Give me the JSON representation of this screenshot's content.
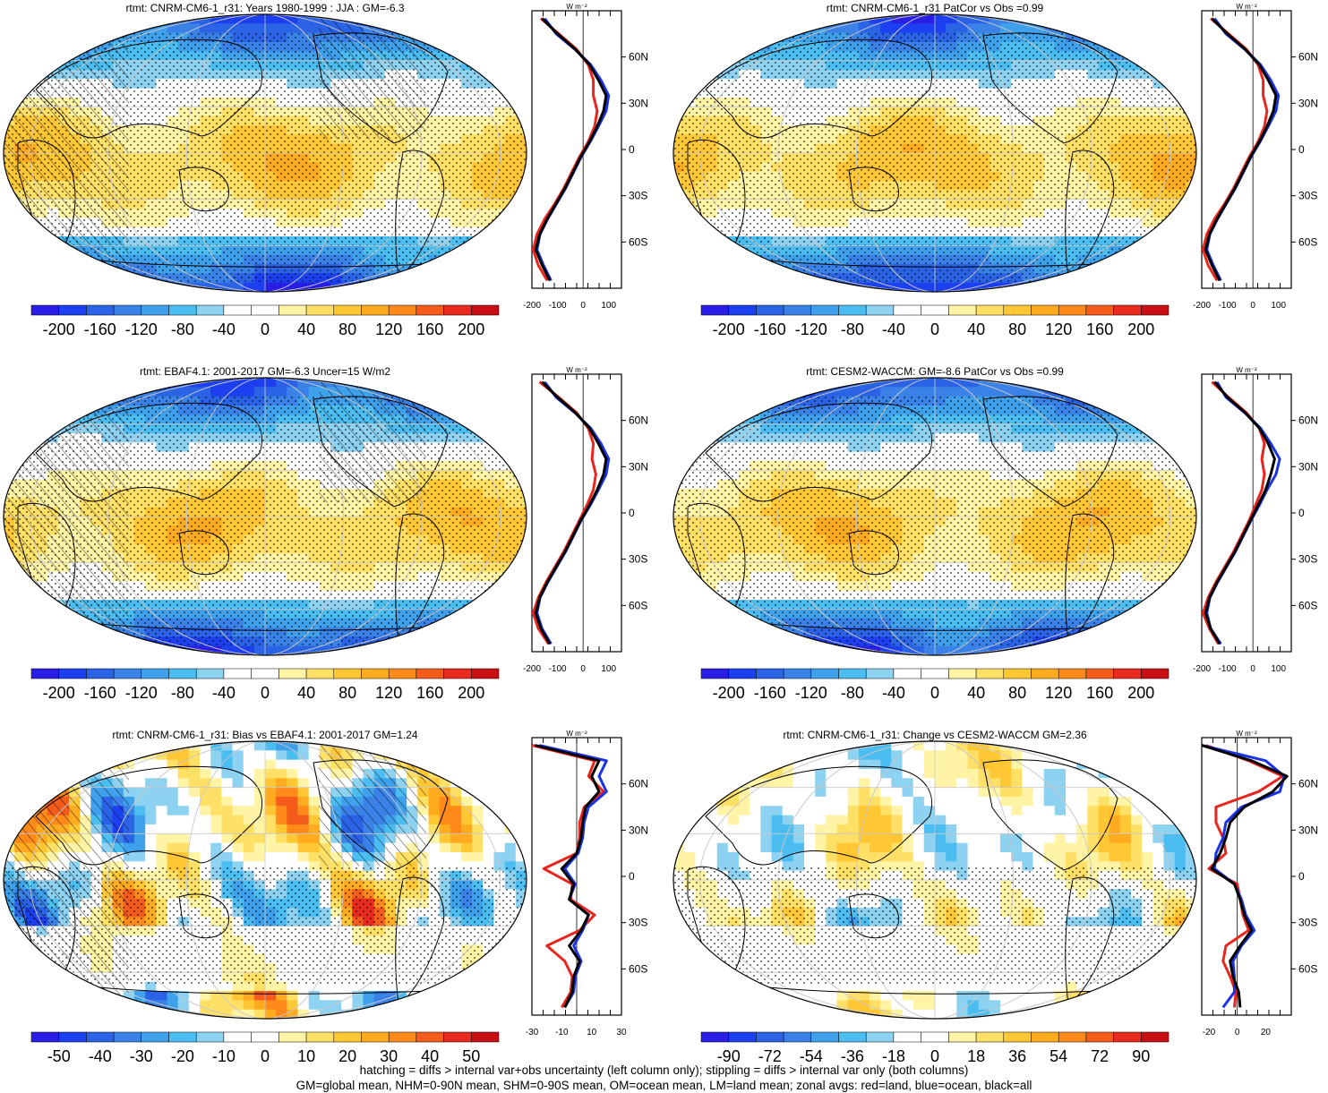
{
  "panels": [
    {
      "title": "rtmt: CNRM-CM6-1_r31: Years 1980-1999 : JJA : GM=-6.3",
      "kind": "clim",
      "hatch": true,
      "pattern": 0,
      "colorbar_labels": [
        "-200",
        "-160",
        "-120",
        "-80",
        "-40",
        "0",
        "40",
        "80",
        "120",
        "160",
        "200"
      ]
    },
    {
      "title": "rtmt: CNRM-CM6-1_r31 PatCor vs Obs =0.99",
      "kind": "clim",
      "hatch": false,
      "pattern": 1,
      "colorbar_labels": [
        "-200",
        "-160",
        "-120",
        "-80",
        "-40",
        "0",
        "40",
        "80",
        "120",
        "160",
        "200"
      ]
    },
    {
      "title": "rtmt: EBAF4.1: 2001-2017 GM=-6.3 Uncer=15 W/m2",
      "kind": "clim",
      "hatch": true,
      "pattern": 2,
      "colorbar_labels": [
        "-200",
        "-160",
        "-120",
        "-80",
        "-40",
        "0",
        "40",
        "80",
        "120",
        "160",
        "200"
      ]
    },
    {
      "title": "rtmt: CESM2-WACCM: GM=-8.6 PatCor vs Obs =0.99",
      "kind": "clim",
      "hatch": false,
      "pattern": 3,
      "colorbar_labels": [
        "-200",
        "-160",
        "-120",
        "-80",
        "-40",
        "0",
        "40",
        "80",
        "120",
        "160",
        "200"
      ]
    },
    {
      "title": "rtmt: CNRM-CM6-1_r31: Bias vs EBAF4.1: 2001-2017 GM=1.24",
      "kind": "diff",
      "hatch": true,
      "pattern": 4,
      "colorbar_labels": [
        "-50",
        "-40",
        "-30",
        "-20",
        "-10",
        "0",
        "10",
        "20",
        "30",
        "40",
        "50"
      ]
    },
    {
      "title": "rtmt: CNRM-CM6-1_r31: Change vs CESM2-WACCM GM=2.36",
      "kind": "diff",
      "hatch": false,
      "pattern": 5,
      "colorbar_labels": [
        "-90",
        "-72",
        "-54",
        "-36",
        "-18",
        "0",
        "18",
        "36",
        "54",
        "72",
        "90"
      ]
    }
  ],
  "zonal_unit": "W m⁻²",
  "lat_labels": [
    "60N",
    "30N",
    "0",
    "30S",
    "60S"
  ],
  "colors": {
    "cmap": [
      "#2a1ee6",
      "#1c3ff0",
      "#2b63e6",
      "#3a82e8",
      "#3fa0ec",
      "#4cbdf0",
      "#8ed2f2",
      "#ffffff",
      "#ffffff",
      "#fff3a6",
      "#ffe066",
      "#ffc733",
      "#ffab1f",
      "#ff8a1a",
      "#f55b1a",
      "#e82a1f",
      "#c80f14"
    ],
    "land": "#e8251f",
    "ocean": "#1a33e6",
    "all": "#000000",
    "grid": "#c8c8c8"
  },
  "chart_data": [
    {
      "type": "line",
      "panel": "rtmt: CNRM-CM6-1_r31: Years 1980-1999 : JJA : GM=-6.3",
      "xlabel": "W m⁻²",
      "xlim": [
        -200,
        150
      ],
      "ylim": [
        -90,
        90
      ],
      "xticks": [
        "-200",
        "-100",
        "0",
        "100"
      ],
      "yticks": [
        "60N",
        "30N",
        "0",
        "30S",
        "60S"
      ],
      "y": [
        -85,
        -75,
        -65,
        -55,
        -45,
        -35,
        -25,
        -15,
        -5,
        5,
        15,
        25,
        35,
        45,
        55,
        65,
        75,
        85
      ],
      "series": [
        {
          "name": "all",
          "values": [
            -130,
            -160,
            -185,
            -170,
            -140,
            -105,
            -70,
            -40,
            -10,
            25,
            55,
            80,
            90,
            60,
            25,
            -30,
            -100,
            -160
          ]
        },
        {
          "name": "land",
          "values": [
            -140,
            -175,
            -195,
            -180,
            -150,
            -110,
            -75,
            -45,
            -15,
            20,
            45,
            55,
            40,
            40,
            20,
            -25,
            -95,
            -165
          ]
        },
        {
          "name": "ocean",
          "values": [
            -125,
            -155,
            -180,
            -168,
            -138,
            -103,
            -68,
            -38,
            -8,
            28,
            60,
            90,
            100,
            70,
            30,
            -32,
            -105,
            -150
          ]
        }
      ]
    },
    {
      "type": "line",
      "panel": "rtmt: CNRM-CM6-1_r31 PatCor vs Obs =0.99",
      "xlabel": "W m⁻²",
      "xlim": [
        -200,
        150
      ],
      "ylim": [
        -90,
        90
      ],
      "xticks": [
        "-200",
        "-100",
        "0",
        "100"
      ],
      "yticks": [
        "60N",
        "30N",
        "0",
        "30S",
        "60S"
      ],
      "y": [
        -85,
        -75,
        -65,
        -55,
        -45,
        -35,
        -25,
        -15,
        -5,
        5,
        15,
        25,
        35,
        45,
        55,
        65,
        75,
        85
      ],
      "series": [
        {
          "name": "all",
          "values": [
            -130,
            -160,
            -185,
            -170,
            -140,
            -105,
            -70,
            -40,
            -10,
            25,
            55,
            80,
            90,
            60,
            25,
            -30,
            -100,
            -160
          ]
        },
        {
          "name": "land",
          "values": [
            -140,
            -175,
            -195,
            -180,
            -150,
            -110,
            -75,
            -45,
            -15,
            20,
            45,
            55,
            40,
            40,
            20,
            -25,
            -95,
            -165
          ]
        },
        {
          "name": "ocean",
          "values": [
            -125,
            -155,
            -180,
            -168,
            -138,
            -103,
            -68,
            -38,
            -8,
            28,
            60,
            90,
            100,
            70,
            30,
            -32,
            -105,
            -150
          ]
        }
      ]
    },
    {
      "type": "line",
      "panel": "rtmt: EBAF4.1: 2001-2017 GM=-6.3 Uncer=15 W/m2",
      "xlabel": "W m⁻²",
      "xlim": [
        -200,
        150
      ],
      "ylim": [
        -90,
        90
      ],
      "xticks": [
        "-200",
        "-100",
        "0",
        "100"
      ],
      "yticks": [
        "60N",
        "30N",
        "0",
        "30S",
        "60S"
      ],
      "y": [
        -85,
        -75,
        -65,
        -55,
        -45,
        -35,
        -25,
        -15,
        -5,
        5,
        15,
        25,
        35,
        45,
        55,
        65,
        75,
        85
      ],
      "series": [
        {
          "name": "all",
          "values": [
            -130,
            -165,
            -185,
            -170,
            -140,
            -105,
            -70,
            -40,
            -10,
            25,
            55,
            80,
            90,
            60,
            25,
            -30,
            -100,
            -160
          ]
        },
        {
          "name": "land",
          "values": [
            -135,
            -175,
            -195,
            -175,
            -145,
            -110,
            -75,
            -45,
            -15,
            15,
            40,
            50,
            35,
            40,
            20,
            -25,
            -95,
            -170
          ]
        },
        {
          "name": "ocean",
          "values": [
            -125,
            -160,
            -180,
            -168,
            -138,
            -103,
            -68,
            -38,
            -8,
            28,
            60,
            90,
            100,
            70,
            30,
            -32,
            -105,
            -150
          ]
        }
      ]
    },
    {
      "type": "line",
      "panel": "rtmt: CESM2-WACCM: GM=-8.6 PatCor vs Obs =0.99",
      "xlabel": "W m⁻²",
      "xlim": [
        -200,
        150
      ],
      "ylim": [
        -90,
        90
      ],
      "xticks": [
        "-200",
        "-100",
        "0",
        "100"
      ],
      "yticks": [
        "60N",
        "30N",
        "0",
        "30S",
        "60S"
      ],
      "y": [
        -85,
        -75,
        -65,
        -55,
        -45,
        -35,
        -25,
        -15,
        -5,
        5,
        15,
        25,
        35,
        45,
        55,
        65,
        75,
        85
      ],
      "series": [
        {
          "name": "all",
          "values": [
            -130,
            -165,
            -185,
            -170,
            -140,
            -105,
            -70,
            -40,
            -10,
            20,
            50,
            70,
            85,
            60,
            25,
            -30,
            -100,
            -150
          ]
        },
        {
          "name": "land",
          "values": [
            -135,
            -170,
            -195,
            -175,
            -145,
            -110,
            -75,
            -45,
            -15,
            10,
            35,
            45,
            35,
            45,
            25,
            -25,
            -95,
            -160
          ]
        },
        {
          "name": "ocean",
          "values": [
            -125,
            -165,
            -180,
            -168,
            -138,
            -103,
            -68,
            -38,
            -8,
            25,
            55,
            90,
            105,
            70,
            30,
            -32,
            -105,
            -140
          ]
        }
      ]
    },
    {
      "type": "line",
      "panel": "rtmt: CNRM-CM6-1_r31: Bias vs EBAF4.1: 2001-2017 GM=1.24",
      "xlabel": "W m⁻²",
      "xlim": [
        -30,
        30
      ],
      "ylim": [
        -90,
        90
      ],
      "xticks": [
        "-30",
        "-10",
        "10",
        "30"
      ],
      "yticks": [
        "60N",
        "30N",
        "0",
        "30S",
        "60S"
      ],
      "y": [
        -85,
        -75,
        -65,
        -55,
        -45,
        -35,
        -25,
        -15,
        -5,
        5,
        15,
        25,
        35,
        45,
        55,
        65,
        75,
        85
      ],
      "series": [
        {
          "name": "all",
          "values": [
            -8,
            -3,
            -2,
            2,
            -5,
            3,
            8,
            -5,
            -2,
            -10,
            0,
            3,
            4,
            6,
            15,
            10,
            15,
            -28
          ]
        },
        {
          "name": "land",
          "values": [
            -10,
            -4,
            -3,
            -8,
            -20,
            2,
            12,
            -4,
            -3,
            -22,
            0,
            2,
            2,
            5,
            18,
            8,
            12,
            -30
          ]
        },
        {
          "name": "ocean",
          "values": [
            -8,
            -2,
            -1,
            3,
            -2,
            4,
            8,
            -5,
            -1,
            -8,
            1,
            4,
            5,
            8,
            20,
            15,
            20,
            -25
          ]
        }
      ]
    },
    {
      "type": "line",
      "panel": "rtmt: CNRM-CM6-1_r31: Change vs CESM2-WACCM GM=2.36",
      "xlabel": "W m⁻²",
      "xlim": [
        -25,
        38
      ],
      "ylim": [
        -90,
        90
      ],
      "xticks": [
        "-20",
        "0",
        "20"
      ],
      "yticks": [
        "60N",
        "30N",
        "0",
        "30S",
        "60S"
      ],
      "y": [
        -85,
        -75,
        -65,
        -55,
        -45,
        -35,
        -25,
        -15,
        -5,
        5,
        15,
        25,
        35,
        45,
        55,
        65,
        75,
        85
      ],
      "series": [
        {
          "name": "all",
          "values": [
            2,
            1,
            -3,
            -5,
            2,
            10,
            5,
            2,
            -2,
            -18,
            -12,
            -8,
            -5,
            5,
            25,
            35,
            10,
            -25
          ]
        },
        {
          "name": "land",
          "values": [
            -2,
            -1,
            -5,
            -10,
            -8,
            8,
            4,
            2,
            0,
            -20,
            -8,
            -10,
            -15,
            -15,
            15,
            32,
            8,
            -22
          ]
        },
        {
          "name": "ocean",
          "values": [
            -10,
            -2,
            -2,
            -3,
            3,
            12,
            6,
            3,
            -2,
            -16,
            -15,
            -10,
            -8,
            3,
            30,
            33,
            20,
            -25
          ]
        }
      ]
    }
  ],
  "footer": {
    "line1": "hatching = diffs > internal var+obs uncertainty (left column only); stippling = diffs > internal var only (both columns)",
    "line2": "GM=global mean, NHM=0-90N mean, SHM=0-90S mean, OM=ocean mean, LM=land mean; zonal avgs: red=land, blue=ocean, black=all"
  }
}
